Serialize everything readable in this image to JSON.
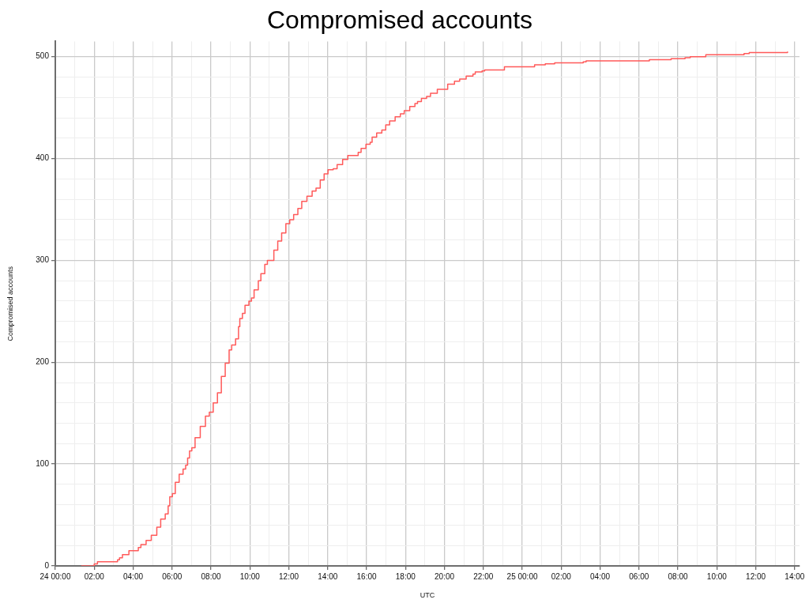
{
  "chart_data": {
    "type": "step",
    "title": "Compromised accounts",
    "xlabel": "UTC",
    "ylabel": "Compromised accounts",
    "color": "#ff5a5a",
    "x": [
      "--01-24T01:20",
      "--01-24T02:00",
      "--01-24T02:10",
      "--01-24T03:12",
      "--01-24T03:18",
      "--01-24T03:27",
      "--01-24T03:47",
      "--01-24T04:16",
      "--01-24T04:24",
      "--01-24T04:40",
      "--01-24T04:56",
      "--01-24T05:13",
      "--01-24T05:25",
      "--01-24T05:39",
      "--01-24T05:48",
      "--01-24T05:53",
      "--01-24T06:01",
      "--01-24T06:10",
      "--01-24T06:22",
      "--01-24T06:34",
      "--01-24T06:42",
      "--01-24T06:48",
      "--01-24T06:54",
      "--01-24T07:01",
      "--01-24T07:11",
      "--01-24T07:27",
      "--01-24T07:43",
      "--01-24T07:55",
      "--01-24T08:07",
      "--01-24T08:20",
      "--01-24T08:32",
      "--01-24T08:44",
      "--01-24T08:56",
      "--01-24T09:04",
      "--01-24T09:16",
      "--01-24T09:25",
      "--01-24T09:29",
      "--01-24T09:37",
      "--01-24T09:45",
      "--01-24T09:57",
      "--01-24T10:05",
      "--01-24T10:13",
      "--01-24T10:26",
      "--01-24T10:34",
      "--01-24T10:46",
      "--01-24T10:54",
      "--01-24T11:14",
      "--01-24T11:26",
      "--01-24T11:38",
      "--01-24T11:51",
      "--01-24T12:03",
      "--01-24T12:15",
      "--01-24T12:28",
      "--01-24T12:40",
      "--01-24T12:56",
      "--01-24T13:12",
      "--01-24T13:24",
      "--01-24T13:37",
      "--01-24T13:49",
      "--01-24T14:01",
      "--01-24T14:17",
      "--01-24T14:29",
      "--01-24T14:46",
      "--01-24T15:02",
      "--01-24T15:34",
      "--01-24T15:43",
      "--01-24T15:58",
      "--01-24T16:11",
      "--01-24T16:17",
      "--01-24T16:31",
      "--01-24T16:47",
      "--01-24T16:59",
      "--01-24T17:11",
      "--01-24T17:28",
      "--01-24T17:44",
      "--01-24T17:56",
      "--01-24T18:13",
      "--01-24T18:29",
      "--01-24T18:37",
      "--01-24T18:49",
      "--01-24T19:05",
      "--01-24T19:17",
      "--01-24T19:38",
      "--01-24T20:10",
      "--01-24T20:31",
      "--01-24T20:47",
      "--01-24T21:07",
      "--01-24T21:28",
      "--01-24T21:35",
      "--01-24T21:56",
      "--01-24T22:04",
      "--01-24T23:05",
      "--01-25T00:38",
      "--01-25T01:11",
      "--01-25T01:40",
      "--01-25T03:08",
      "--01-25T03:17",
      "--01-25T06:32",
      "--01-25T07:39",
      "--01-25T08:22",
      "--01-25T08:38",
      "--01-25T09:26",
      "--01-25T11:24",
      "--01-25T11:40",
      "--01-25T13:38"
    ],
    "values": [
      0,
      2,
      4,
      6,
      8,
      11,
      15,
      18,
      21,
      25,
      30,
      38,
      46,
      51,
      59,
      68,
      71,
      82,
      90,
      95,
      99,
      106,
      113,
      116,
      126,
      137,
      147,
      151,
      160,
      170,
      186,
      199,
      212,
      217,
      223,
      235,
      243,
      248,
      256,
      260,
      263,
      271,
      280,
      287,
      296,
      300,
      310,
      319,
      327,
      336,
      340,
      345,
      351,
      358,
      363,
      368,
      371,
      379,
      385,
      389,
      390,
      394,
      399,
      403,
      406,
      410,
      414,
      416,
      421,
      425,
      428,
      433,
      437,
      441,
      444,
      447,
      451,
      454,
      456,
      459,
      461,
      464,
      468,
      473,
      476,
      478,
      481,
      483,
      485,
      486,
      487,
      490,
      492,
      493,
      494,
      495,
      496,
      497,
      498,
      499,
      500,
      502,
      503,
      504,
      505
    ],
    "xlim": [
      "--01-24T00:00",
      "--01-25T14:15"
    ],
    "ylim": [
      0,
      515
    ],
    "xticks": [
      {
        "value": "--01-24T00:00",
        "label": "24 00:00"
      },
      {
        "value": "--01-24T01:00",
        "label": null
      },
      {
        "value": "--01-24T02:00",
        "label": "02:00"
      },
      {
        "value": "--01-24T03:00",
        "label": null
      },
      {
        "value": "--01-24T04:00",
        "label": "04:00"
      },
      {
        "value": "--01-24T05:00",
        "label": null
      },
      {
        "value": "--01-24T06:00",
        "label": "06:00"
      },
      {
        "value": "--01-24T07:00",
        "label": null
      },
      {
        "value": "--01-24T08:00",
        "label": "08:00"
      },
      {
        "value": "--01-24T09:00",
        "label": null
      },
      {
        "value": "--01-24T10:00",
        "label": "10:00"
      },
      {
        "value": "--01-24T11:00",
        "label": null
      },
      {
        "value": "--01-24T12:00",
        "label": "12:00"
      },
      {
        "value": "--01-24T13:00",
        "label": null
      },
      {
        "value": "--01-24T14:00",
        "label": "14:00"
      },
      {
        "value": "--01-24T15:00",
        "label": null
      },
      {
        "value": "--01-24T16:00",
        "label": "16:00"
      },
      {
        "value": "--01-24T17:00",
        "label": null
      },
      {
        "value": "--01-24T18:00",
        "label": "18:00"
      },
      {
        "value": "--01-24T19:00",
        "label": null
      },
      {
        "value": "--01-24T20:00",
        "label": "20:00"
      },
      {
        "value": "--01-24T21:00",
        "label": null
      },
      {
        "value": "--01-24T22:00",
        "label": "22:00"
      },
      {
        "value": "--01-24T23:00",
        "label": null
      },
      {
        "value": "--01-25T00:00",
        "label": "25 00:00"
      },
      {
        "value": "--01-25T01:00",
        "label": null
      },
      {
        "value": "--01-25T02:00",
        "label": "02:00"
      },
      {
        "value": "--01-25T03:00",
        "label": null
      },
      {
        "value": "--01-25T04:00",
        "label": "04:00"
      },
      {
        "value": "--01-25T05:00",
        "label": null
      },
      {
        "value": "--01-25T06:00",
        "label": "06:00"
      },
      {
        "value": "--01-25T07:00",
        "label": null
      },
      {
        "value": "--01-25T08:00",
        "label": "08:00"
      },
      {
        "value": "--01-25T09:00",
        "label": null
      },
      {
        "value": "--01-25T10:00",
        "label": "10:00"
      },
      {
        "value": "--01-25T11:00",
        "label": null
      },
      {
        "value": "--01-25T12:00",
        "label": "12:00"
      },
      {
        "value": "--01-25T13:00",
        "label": null
      },
      {
        "value": "--01-25T14:00",
        "label": "14:00"
      }
    ],
    "yticks": [
      0,
      {
        "value": 20,
        "label": null
      },
      {
        "value": 40,
        "label": null
      },
      {
        "value": 60,
        "label": null
      },
      {
        "value": 80,
        "label": null
      },
      100,
      {
        "value": 120,
        "label": null
      },
      {
        "value": 140,
        "label": null
      },
      {
        "value": 160,
        "label": null
      },
      {
        "value": 180,
        "label": null
      },
      200,
      {
        "value": 220,
        "label": null
      },
      {
        "value": 240,
        "label": null
      },
      {
        "value": 260,
        "label": null
      },
      {
        "value": 280,
        "label": null
      },
      300,
      {
        "value": 320,
        "label": null
      },
      {
        "value": 340,
        "label": null
      },
      {
        "value": 360,
        "label": null
      },
      {
        "value": 380,
        "label": null
      },
      400,
      {
        "value": 420,
        "label": null
      },
      {
        "value": 440,
        "label": null
      },
      {
        "value": 460,
        "label": null
      },
      {
        "value": 480,
        "label": null
      },
      500
    ],
    "grid": true
  }
}
